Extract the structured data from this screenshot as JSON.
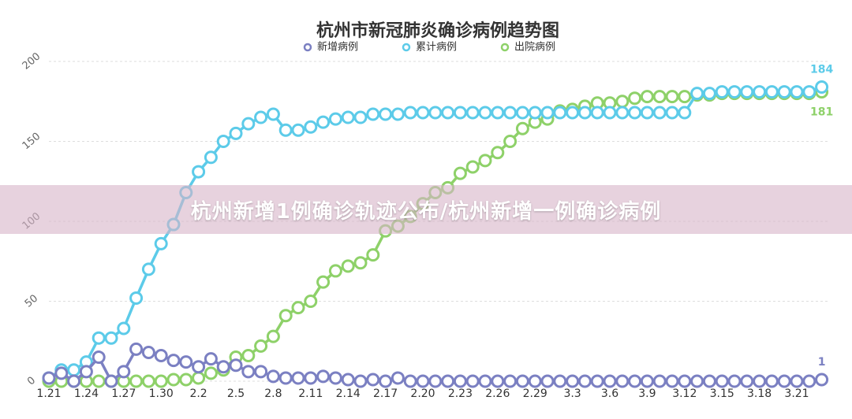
{
  "chart_data": {
    "type": "line",
    "title": "杭州市新冠肺炎确诊病例趋势图",
    "categories": [
      "1.21",
      null,
      null,
      "1.24",
      null,
      null,
      "1.27",
      null,
      null,
      "1.30",
      null,
      null,
      "2.2",
      null,
      null,
      "2.5",
      null,
      null,
      "2.8",
      null,
      null,
      "2.11",
      null,
      null,
      "2.14",
      null,
      null,
      "2.17",
      null,
      null,
      "2.20",
      null,
      null,
      "2.23",
      null,
      null,
      "2.26",
      null,
      null,
      "2.29",
      null,
      null,
      "3.3",
      null,
      null,
      "3.6",
      null,
      null,
      "3.9",
      null,
      null,
      "3.12",
      null,
      null,
      "3.15",
      null,
      null,
      "3.18",
      null,
      null,
      "3.21",
      null,
      null
    ],
    "series": [
      {
        "name": "新增病例",
        "color": "#7b80c2",
        "values": [
          2,
          5,
          0,
          6,
          15,
          0,
          6,
          20,
          18,
          16,
          13,
          12,
          9,
          14,
          9,
          10,
          6,
          6,
          3,
          2,
          2,
          2,
          3,
          2,
          1,
          0,
          1,
          0,
          2,
          0,
          0,
          0,
          0,
          0,
          0,
          0,
          0,
          0,
          0,
          0,
          0,
          0,
          0,
          0,
          0,
          0,
          0,
          0,
          0,
          0,
          0,
          0,
          0,
          0,
          0,
          0,
          0,
          0,
          0,
          0,
          0,
          0,
          1
        ]
      },
      {
        "name": "累计病例",
        "color": "#5ccbe9",
        "values": [
          2,
          7,
          7,
          12,
          27,
          27,
          33,
          52,
          70,
          86,
          98,
          118,
          131,
          140,
          150,
          155,
          161,
          165,
          167,
          157,
          157,
          159,
          162,
          164,
          165,
          165,
          167,
          167,
          167,
          168,
          168,
          168,
          168,
          168,
          168,
          168,
          168,
          168,
          168,
          168,
          168,
          168,
          168,
          168,
          168,
          168,
          168,
          168,
          168,
          168,
          168,
          168,
          180,
          180,
          181,
          181,
          181,
          181,
          181,
          181,
          181,
          181,
          184
        ]
      },
      {
        "name": "出院病例",
        "color": "#8ed169",
        "values": [
          0,
          0,
          0,
          0,
          0,
          0,
          0,
          0,
          0,
          0,
          1,
          1,
          2,
          5,
          7,
          15,
          16,
          22,
          28,
          41,
          46,
          50,
          62,
          69,
          72,
          74,
          79,
          94,
          97,
          103,
          111,
          118,
          121,
          130,
          134,
          138,
          143,
          150,
          158,
          162,
          164,
          169,
          170,
          172,
          174,
          174,
          175,
          177,
          178,
          178,
          178,
          178,
          179,
          179,
          180,
          180,
          180,
          180,
          180,
          180,
          180,
          180,
          181
        ]
      }
    ],
    "ylim": [
      0,
      200
    ],
    "yticks": [
      0,
      50,
      100,
      150,
      200
    ],
    "grid": true,
    "legend": "top"
  },
  "banner": {
    "text": "杭州新增1例确诊轨迹公布/杭州新增一例确诊病例"
  }
}
